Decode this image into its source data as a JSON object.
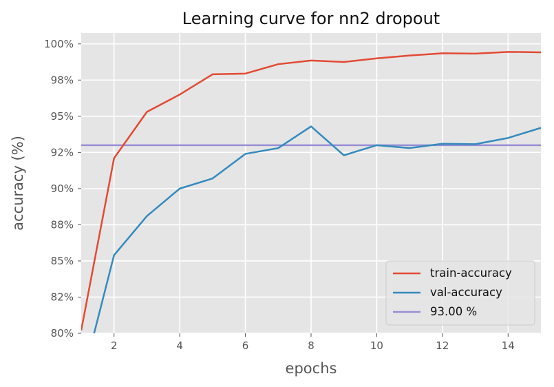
{
  "chart_data": {
    "type": "line",
    "title": "Learning curve for nn2 dropout",
    "xlabel": "epochs",
    "ylabel": "accuracy (%)",
    "xlim": [
      1,
      15
    ],
    "ylim": [
      80,
      100.75
    ],
    "x_ticks": [
      2,
      4,
      6,
      8,
      10,
      12,
      14
    ],
    "x_tick_labels": [
      "2",
      "4",
      "6",
      "8",
      "10",
      "12",
      "14"
    ],
    "y_ticks": [
      80,
      82.5,
      85,
      87.5,
      90,
      92.5,
      95,
      97.5,
      100
    ],
    "y_tick_labels": [
      "80%",
      "82%",
      "85%",
      "88%",
      "90%",
      "92%",
      "95%",
      "98%",
      "100%"
    ],
    "grid": true,
    "legend_position": "bottom-right",
    "x": [
      1,
      2,
      3,
      4,
      5,
      6,
      7,
      8,
      9,
      10,
      11,
      12,
      13,
      14,
      15
    ],
    "series": [
      {
        "name": "train-accuracy",
        "color": "#E24A33",
        "values": [
          80.2,
          92.1,
          95.3,
          96.5,
          97.9,
          97.95,
          98.6,
          98.85,
          98.75,
          99.0,
          99.2,
          99.35,
          99.33,
          99.45,
          99.42
        ]
      },
      {
        "name": "val-accuracy",
        "color": "#348ABD",
        "values": [
          76.5,
          85.4,
          88.1,
          90.0,
          90.7,
          92.4,
          92.8,
          94.3,
          92.3,
          93.0,
          92.8,
          93.1,
          93.07,
          93.5,
          94.2
        ]
      }
    ],
    "reference_line": {
      "name": "93.00 %",
      "value": 93.0,
      "color": "#988ED5"
    }
  }
}
